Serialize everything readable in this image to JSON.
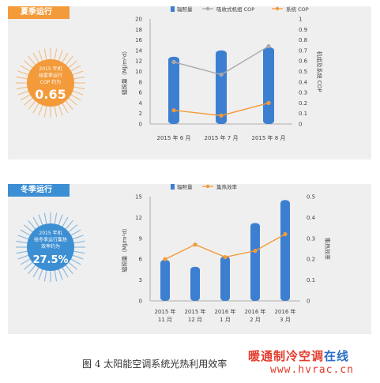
{
  "panels": [
    {
      "tab_label": "夏季运行",
      "badge": {
        "lines": [
          "2015 年机",
          "组夏季运行",
          "COP 约为"
        ],
        "value": "0.65",
        "color": "#f39a3a"
      }
    },
    {
      "tab_label": "冬季运行",
      "badge": {
        "lines": [
          "2015 年机",
          "组冬季运行集热",
          "效率约为"
        ],
        "value": "27.5%",
        "color": "#3c8fd3"
      }
    }
  ],
  "caption": "图 4 太阳能空调系统光热利用效率",
  "watermark": {
    "brand": "暖通制冷空调",
    "tail": "在线",
    "url": "www.hvrac.cn"
  },
  "chart_data": [
    {
      "type": "bar",
      "categories": [
        "2015 年 6 月",
        "2015 年 7 月",
        "2015 年 8 月"
      ],
      "ylabel": "辐照量（MJ/m²d）",
      "y2label": "机组及系统 COP",
      "ylim": [
        0,
        20
      ],
      "y_ticks": [
        0,
        2,
        4,
        6,
        8,
        10,
        12,
        14,
        16,
        18,
        20
      ],
      "y2lim": [
        0,
        1
      ],
      "y2_ticks": [
        "0",
        "0.1",
        "0.2",
        "0.3",
        "0.4",
        "0.5",
        "0.6",
        "0.7",
        "0.8",
        "0.9",
        "1"
      ],
      "legend": [
        "辐照量",
        "吸收式机组 COP",
        "系统 COP"
      ],
      "series": [
        {
          "name": "辐照量",
          "values": [
            12.8,
            14.0,
            14.6
          ],
          "axis": "left",
          "color": "#3c7fd1"
        },
        {
          "name": "吸收式机组 COP",
          "values": [
            0.59,
            0.47,
            0.74
          ],
          "axis": "right",
          "color": "#a9a9a9"
        },
        {
          "name": "系统 COP",
          "values": [
            0.13,
            0.08,
            0.2
          ],
          "axis": "right",
          "color": "#f39a3a"
        }
      ]
    },
    {
      "type": "bar",
      "categories": [
        [
          "2015 年",
          "11 月"
        ],
        [
          "2015 年",
          "12 月"
        ],
        [
          "2016 年",
          "1 月"
        ],
        [
          "2016 年",
          "2 月"
        ],
        [
          "2016 年",
          "3 月"
        ]
      ],
      "ylabel": "辐照量（MJ/m²d）",
      "y2label": "集热效率",
      "ylim": [
        0,
        15
      ],
      "y_ticks": [
        0,
        3,
        6,
        9,
        12,
        15
      ],
      "y2lim": [
        0,
        0.5
      ],
      "y2_ticks": [
        "0",
        "0.1",
        "0.2",
        "0.3",
        "0.4",
        "0.5"
      ],
      "legend": [
        "辐照量",
        "集热效率"
      ],
      "series": [
        {
          "name": "辐照量",
          "values": [
            5.9,
            4.9,
            6.4,
            11.2,
            14.5
          ],
          "axis": "left",
          "color": "#3c7fd1"
        },
        {
          "name": "集热效率",
          "values": [
            0.2,
            0.27,
            0.21,
            0.24,
            0.32
          ],
          "axis": "right",
          "color": "#f39a3a"
        }
      ]
    }
  ]
}
